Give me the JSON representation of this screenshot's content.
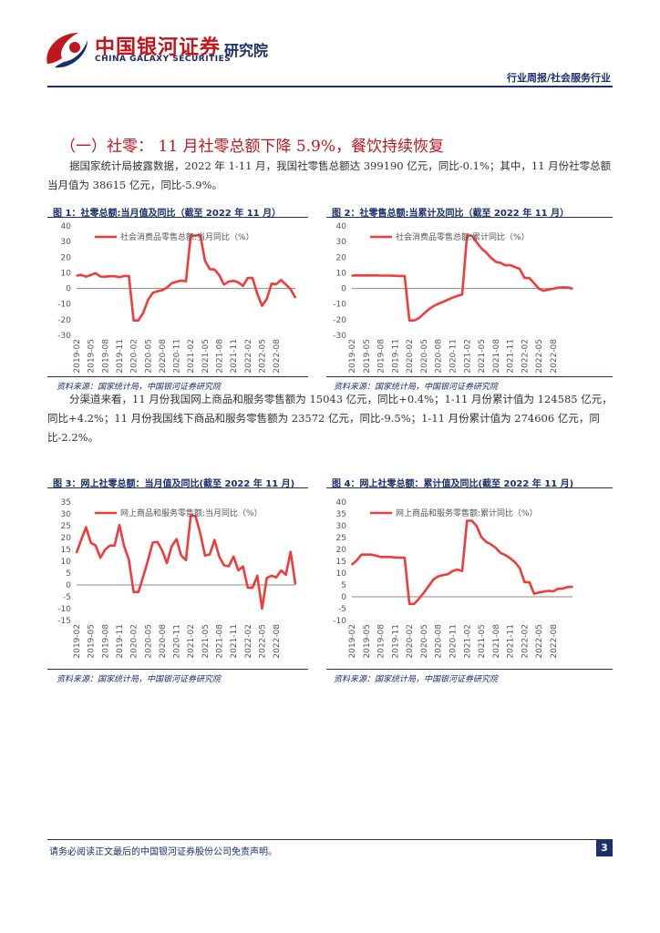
{
  "header": {
    "brand_cn": "中国银河证券",
    "brand_en": "CHINA GALAXY SECURITIES",
    "institute": "研究院",
    "tag": "行业周报/社会服务行业"
  },
  "section": {
    "title": "（一）社零： 11 月社零总额下降 5.9%，餐饮持续恢复"
  },
  "paragraphs": [
    "据国家统计局披露数据，2022 年 1-11 月，我国社零售总额达 399190 亿元，同比-0.1%；其中，11 月份社零总额当月值为 38615 亿元，同比-5.9%。",
    "分渠道来看，11 月份我国网上商品和服务零售额为 15043 亿元，同比+0.4%；1-11 月份累计值为 124585 亿元，同比+4.2%；11 月份我国线下商品和服务零售额为 23572 亿元，同比-9.5%；1-11 月份累计值为 274606 亿元，同比-2.2%。"
  ],
  "footer": {
    "disclaimer": "请务必阅读正文最后的中国银河证券股份公司免责声明。",
    "page": "3"
  },
  "colors": {
    "brand_red": "#c0161c",
    "brand_navy": "#1a2f6b",
    "line": "#f23b3b"
  },
  "chart_data": [
    {
      "type": "line",
      "title": "图 1：社零总额:当月值及同比（截至 2022 年 11 月）",
      "source": "资料来源：国家统计局，中国银河证券研究院",
      "legend": "社会消费品零售总额:当月同比（%）",
      "ylim": [
        -30,
        40
      ],
      "yticks": [
        -30,
        -20,
        -10,
        0,
        10,
        20,
        30,
        40
      ],
      "xticks": [
        "2019-02",
        "2019-05",
        "2019-08",
        "2019-11",
        "2020-02",
        "2020-05",
        "2020-08",
        "2020-11",
        "2021-02",
        "2021-05",
        "2021-08",
        "2021-11",
        "2022-02",
        "2022-05",
        "2022-08"
      ],
      "series": [
        {
          "name": "社会消费品零售总额:当月同比（%）",
          "values": [
            8.2,
            8.7,
            7.5,
            8.6,
            9.8,
            7.6,
            7.5,
            7.8,
            7.8,
            7.2,
            8.0,
            8.0,
            -20.5,
            -20.5,
            -15.8,
            -7.5,
            -2.8,
            -1.8,
            -1.1,
            0.5,
            3.3,
            4.3,
            5.0,
            4.6,
            33.8,
            33.8,
            34.2,
            17.7,
            12.4,
            12.1,
            8.5,
            2.5,
            4.4,
            4.9,
            3.9,
            1.7,
            6.7,
            6.7,
            -3.5,
            -11.1,
            -6.7,
            3.1,
            2.7,
            5.4,
            2.5,
            -0.5,
            -5.9
          ]
        }
      ]
    },
    {
      "type": "line",
      "title": "图 2：社零售总额:当累计及同比（截至 2022 年 11 月）",
      "source": "资料来源：国家统计局，中国银河证券研究院",
      "legend": "社会消费品零售总额:累计同比（%）",
      "ylim": [
        -30,
        40
      ],
      "yticks": [
        -30,
        -20,
        -10,
        0,
        10,
        20,
        30,
        40
      ],
      "xticks": [
        "2019-02",
        "2019-05",
        "2019-08",
        "2019-11",
        "2020-02",
        "2020-05",
        "2020-08",
        "2020-11",
        "2021-02",
        "2021-05",
        "2021-08",
        "2021-11",
        "2022-02",
        "2022-05",
        "2022-08"
      ],
      "series": [
        {
          "name": "社会消费品零售总额:累计同比（%）",
          "values": [
            8.2,
            8.3,
            8.3,
            8.4,
            8.3,
            8.4,
            8.2,
            8.2,
            8.2,
            8.1,
            8.0,
            8.0,
            -20.5,
            -20.5,
            -19.0,
            -16.2,
            -13.5,
            -11.4,
            -9.9,
            -8.6,
            -7.2,
            -5.9,
            -4.8,
            -3.9,
            33.8,
            33.8,
            29.6,
            25.7,
            23.0,
            19.6,
            17.1,
            16.4,
            14.8,
            14.9,
            13.7,
            12.5,
            6.7,
            6.7,
            3.3,
            -0.2,
            -1.5,
            -0.7,
            -0.2,
            0.5,
            0.7,
            0.6,
            -0.1
          ]
        }
      ]
    },
    {
      "type": "line",
      "title": "图 3：网上社零总额：当月值及同比(截至 2022 年 11 月)",
      "source": "资料来源：国家统计局，中国银河证券研究院",
      "legend": "网上商品和服务零售额:当月同比（%）",
      "ylim": [
        -15,
        35
      ],
      "yticks": [
        -15,
        -10,
        -5,
        0,
        5,
        10,
        15,
        20,
        25,
        30,
        35
      ],
      "xticks": [
        "2019-02",
        "2019-05",
        "2019-08",
        "2019-11",
        "2020-02",
        "2020-05",
        "2020-08",
        "2020-11",
        "2021-02",
        "2021-05",
        "2021-08",
        "2021-11",
        "2022-02",
        "2022-05",
        "2022-08"
      ],
      "series": [
        {
          "name": "网上商品和服务零售额:当月同比（%）",
          "values": [
            13.6,
            19.2,
            24.4,
            17.8,
            16.7,
            11.5,
            14.9,
            16.6,
            16.6,
            25.3,
            16.3,
            10.6,
            -3.0,
            -3.0,
            3.4,
            10.4,
            17.9,
            18.1,
            14.6,
            9.2,
            16.3,
            19.4,
            12.4,
            10.5,
            29.2,
            29.2,
            21.8,
            12.4,
            12.9,
            19.0,
            12.0,
            8.3,
            7.9,
            12.0,
            6.2,
            7.8,
            -1.2,
            -1.2,
            3.9,
            -10.0,
            3.0,
            3.9,
            3.2,
            6.1,
            4.3,
            14.0,
            0.4
          ]
        }
      ]
    },
    {
      "type": "line",
      "title": "图 4：网上社零总额：累计值及同比(截至 2022 年 11 月)",
      "source": "资料来源：国家统计局，中国银河证券研究院",
      "legend": "网上商品和服务零售额:累计同比（%）",
      "ylim": [
        -10,
        40
      ],
      "yticks": [
        -10,
        -5,
        0,
        5,
        10,
        15,
        20,
        25,
        30,
        35,
        40
      ],
      "xticks": [
        "2019-02",
        "2019-05",
        "2019-08",
        "2019-11",
        "2020-02",
        "2020-05",
        "2020-08",
        "2020-11",
        "2021-02",
        "2021-05",
        "2021-08",
        "2021-11",
        "2022-02",
        "2022-05",
        "2022-08"
      ],
      "series": [
        {
          "name": "网上商品和服务零售额:累计同比（%）",
          "values": [
            13.6,
            15.3,
            17.8,
            17.8,
            17.8,
            17.4,
            16.8,
            16.8,
            16.8,
            16.6,
            16.5,
            16.5,
            -3.0,
            -3.0,
            -0.8,
            1.7,
            4.5,
            7.3,
            8.6,
            9.2,
            9.5,
            10.9,
            11.5,
            10.9,
            32.1,
            32.1,
            29.9,
            25.2,
            23.2,
            22.1,
            20.7,
            18.5,
            17.6,
            16.3,
            14.6,
            12.1,
            6.2,
            6.2,
            1.3,
            1.8,
            2.2,
            2.5,
            2.3,
            3.4,
            3.5,
            4.1,
            4.2
          ]
        }
      ]
    }
  ]
}
